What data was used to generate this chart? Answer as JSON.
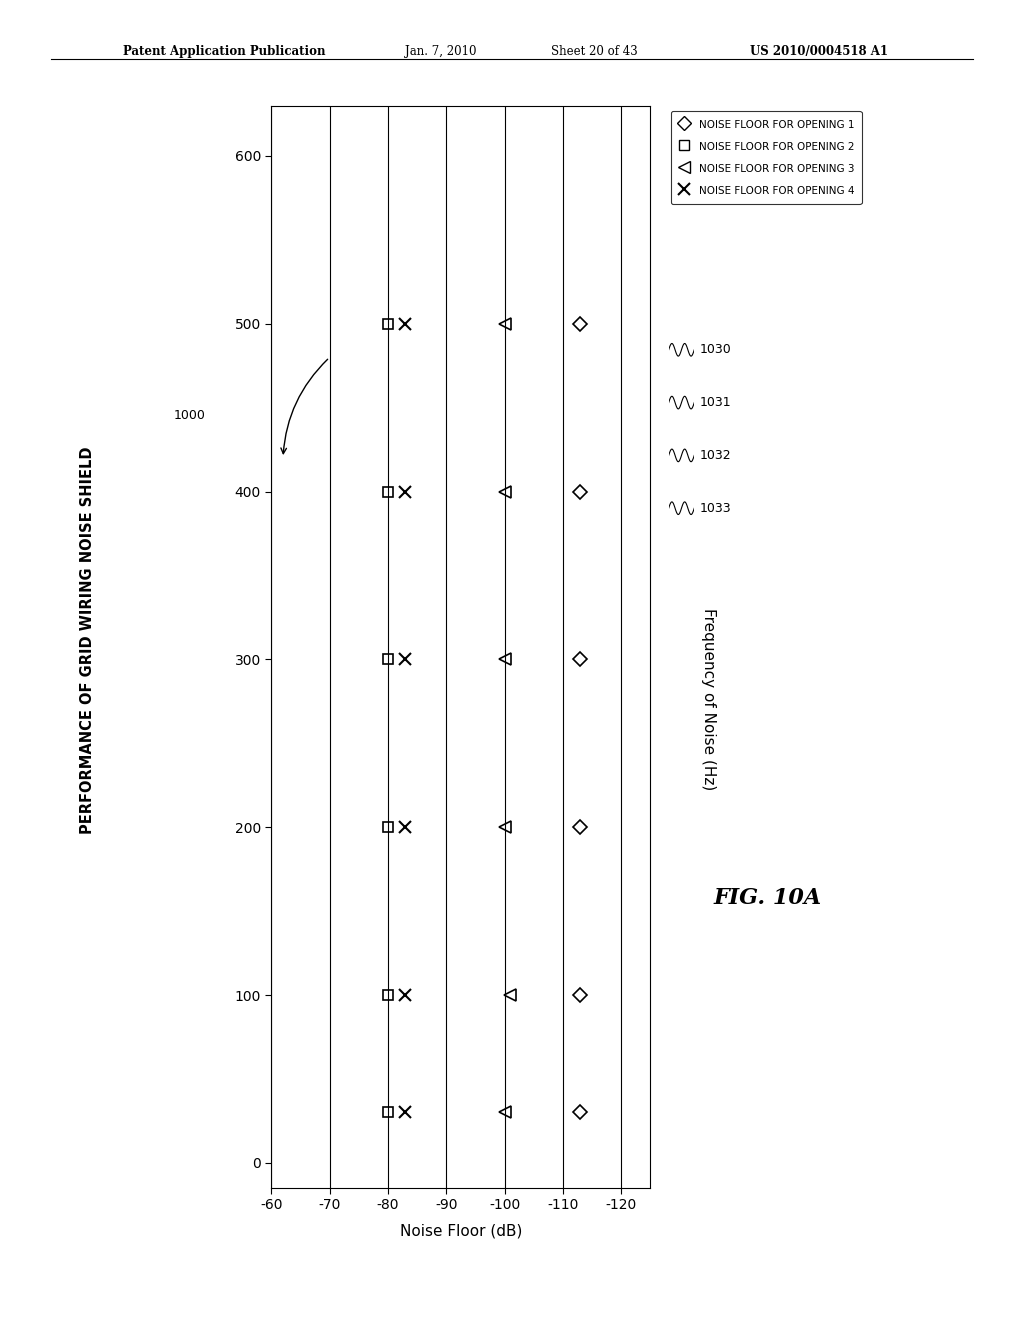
{
  "title": "PERFORMANCE OF GRID WIRING NOISE SHIELD",
  "xlabel": "Noise Floor (dB)",
  "fig_label": "FIG. 10A",
  "annotation": "1000",
  "x_ticks": [
    -60,
    -70,
    -80,
    -90,
    -100,
    -110,
    -120
  ],
  "y_ticks": [
    0,
    100,
    200,
    300,
    400,
    500,
    600
  ],
  "xlim": [
    -60,
    -125
  ],
  "ylim": [
    -15,
    630
  ],
  "opening1_x": [
    -113,
    -113,
    -113,
    -113,
    -113,
    -113
  ],
  "opening2_x": [
    -80,
    -80,
    -80,
    -80,
    -80,
    -80
  ],
  "opening3_x": [
    -100,
    -101,
    -100,
    -100,
    -100,
    -100
  ],
  "opening4_x": [
    -83,
    -83,
    -83,
    -83,
    -83,
    -83
  ],
  "freqs_low": [
    30,
    100,
    200,
    300,
    400,
    500
  ],
  "legend_labels": [
    "NOISE FLOOR FOR OPENING 1",
    "NOISE FLOOR FOR OPENING 2",
    "NOISE FLOOR FOR OPENING 3",
    "NOISE FLOOR FOR OPENING 4"
  ],
  "ref_numbers": [
    "1030",
    "1031",
    "1032",
    "1033"
  ],
  "background_color": "#ffffff",
  "header_line1": "Patent Application Publication",
  "header_line2": "Jan. 7, 2010",
  "header_line3": "Sheet 20 of 43",
  "header_line4": "US 2010/0004518 A1"
}
